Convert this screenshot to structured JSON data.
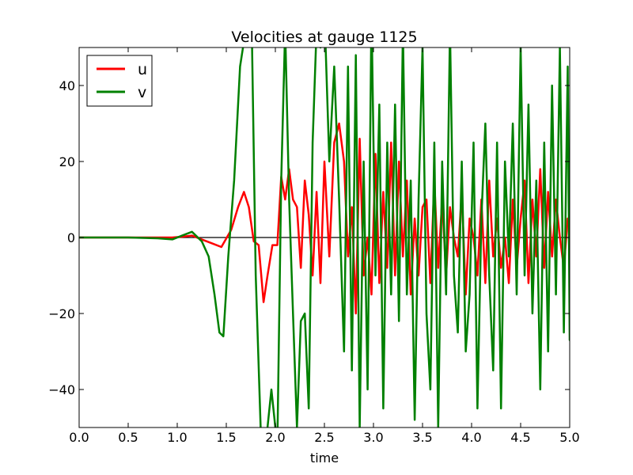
{
  "chart_data": {
    "type": "line",
    "title": "Velocities at gauge 1125",
    "xlabel": "time",
    "ylabel": "",
    "xlim": [
      0.0,
      5.0
    ],
    "ylim": [
      -50,
      50
    ],
    "xticks": [
      0.0,
      0.5,
      1.0,
      1.5,
      2.0,
      2.5,
      3.0,
      3.5,
      4.0,
      4.5,
      5.0
    ],
    "xtick_labels": [
      "0.0",
      "0.5",
      "1.0",
      "1.5",
      "2.0",
      "2.5",
      "3.0",
      "3.5",
      "4.0",
      "4.5",
      "5.0"
    ],
    "yticks": [
      -40,
      -20,
      0,
      20,
      40
    ],
    "ytick_labels": [
      "−40",
      "−20",
      "0",
      "20",
      "40"
    ],
    "grid": false,
    "legend_position": "top-left",
    "zero_line": true,
    "series": [
      {
        "name": "u",
        "color": "#ff0000",
        "x": [
          0.0,
          0.5,
          0.8,
          0.95,
          1.05,
          1.15,
          1.25,
          1.35,
          1.45,
          1.55,
          1.62,
          1.68,
          1.73,
          1.78,
          1.83,
          1.88,
          1.92,
          1.97,
          2.02,
          2.06,
          2.1,
          2.14,
          2.18,
          2.22,
          2.26,
          2.3,
          2.34,
          2.38,
          2.42,
          2.46,
          2.5,
          2.55,
          2.6,
          2.65,
          2.7,
          2.74,
          2.78,
          2.82,
          2.86,
          2.9,
          2.94,
          2.98,
          3.02,
          3.06,
          3.1,
          3.14,
          3.18,
          3.22,
          3.26,
          3.3,
          3.34,
          3.38,
          3.42,
          3.46,
          3.5,
          3.54,
          3.58,
          3.62,
          3.66,
          3.7,
          3.74,
          3.78,
          3.82,
          3.86,
          3.9,
          3.94,
          3.98,
          4.02,
          4.06,
          4.1,
          4.14,
          4.18,
          4.22,
          4.26,
          4.3,
          4.34,
          4.38,
          4.42,
          4.46,
          4.5,
          4.54,
          4.58,
          4.62,
          4.66,
          4.7,
          4.74,
          4.78,
          4.82,
          4.86,
          4.9,
          4.94,
          4.98,
          5.0
        ],
        "y": [
          0,
          0,
          0,
          0,
          0.2,
          0.5,
          -0.5,
          -1.5,
          -2.5,
          2,
          8,
          12,
          8,
          -1,
          -2,
          -17,
          -10,
          -2,
          -2,
          16,
          10,
          18,
          10,
          8,
          -8,
          15,
          6,
          -10,
          12,
          -12,
          20,
          -5,
          25,
          30,
          20,
          -5,
          8,
          -20,
          26,
          -10,
          0,
          -15,
          22,
          -12,
          12,
          -8,
          25,
          -10,
          20,
          -5,
          15,
          -15,
          5,
          -10,
          8,
          10,
          -12,
          15,
          -8,
          10,
          -10,
          8,
          0,
          -5,
          12,
          -15,
          5,
          0,
          -10,
          10,
          -12,
          15,
          -5,
          5,
          -8,
          0,
          -12,
          10,
          -8,
          5,
          15,
          -12,
          10,
          -5,
          18,
          -8,
          12,
          -5,
          10,
          0,
          -8,
          5,
          4
        ]
      },
      {
        "name": "v",
        "color": "#008000",
        "x": [
          0.0,
          0.5,
          0.8,
          0.95,
          1.05,
          1.15,
          1.25,
          1.32,
          1.38,
          1.43,
          1.47,
          1.52,
          1.58,
          1.64,
          1.7,
          1.76,
          1.8,
          1.85,
          1.9,
          1.96,
          2.02,
          2.06,
          2.1,
          2.14,
          2.18,
          2.22,
          2.26,
          2.3,
          2.34,
          2.38,
          2.42,
          2.46,
          2.5,
          2.55,
          2.6,
          2.65,
          2.7,
          2.74,
          2.78,
          2.82,
          2.86,
          2.9,
          2.94,
          2.98,
          3.02,
          3.06,
          3.1,
          3.14,
          3.18,
          3.22,
          3.26,
          3.3,
          3.34,
          3.38,
          3.42,
          3.46,
          3.5,
          3.54,
          3.58,
          3.62,
          3.66,
          3.7,
          3.74,
          3.78,
          3.82,
          3.86,
          3.9,
          3.94,
          3.98,
          4.02,
          4.06,
          4.1,
          4.14,
          4.18,
          4.22,
          4.26,
          4.3,
          4.34,
          4.38,
          4.42,
          4.46,
          4.5,
          4.54,
          4.58,
          4.62,
          4.66,
          4.7,
          4.74,
          4.78,
          4.82,
          4.86,
          4.9,
          4.94,
          4.98,
          5.0
        ],
        "y": [
          0,
          0,
          -0.2,
          -0.5,
          0.5,
          1.5,
          -1,
          -5,
          -15,
          -25,
          -26,
          -5,
          15,
          45,
          55,
          55,
          -10,
          -50,
          -55,
          -40,
          -55,
          15,
          55,
          10,
          -20,
          -50,
          -22,
          -20,
          -45,
          25,
          55,
          50,
          60,
          20,
          45,
          10,
          -30,
          45,
          -35,
          48,
          -50,
          20,
          -40,
          60,
          -10,
          35,
          -45,
          25,
          -15,
          35,
          -22,
          55,
          -15,
          15,
          -48,
          10,
          50,
          -20,
          -40,
          25,
          -50,
          20,
          -15,
          55,
          -10,
          -25,
          20,
          -30,
          -15,
          25,
          -45,
          5,
          30,
          -10,
          -35,
          25,
          -45,
          20,
          -5,
          30,
          -15,
          50,
          -10,
          35,
          -20,
          15,
          -40,
          25,
          -30,
          40,
          -15,
          50,
          -25,
          45,
          -27
        ]
      }
    ]
  }
}
